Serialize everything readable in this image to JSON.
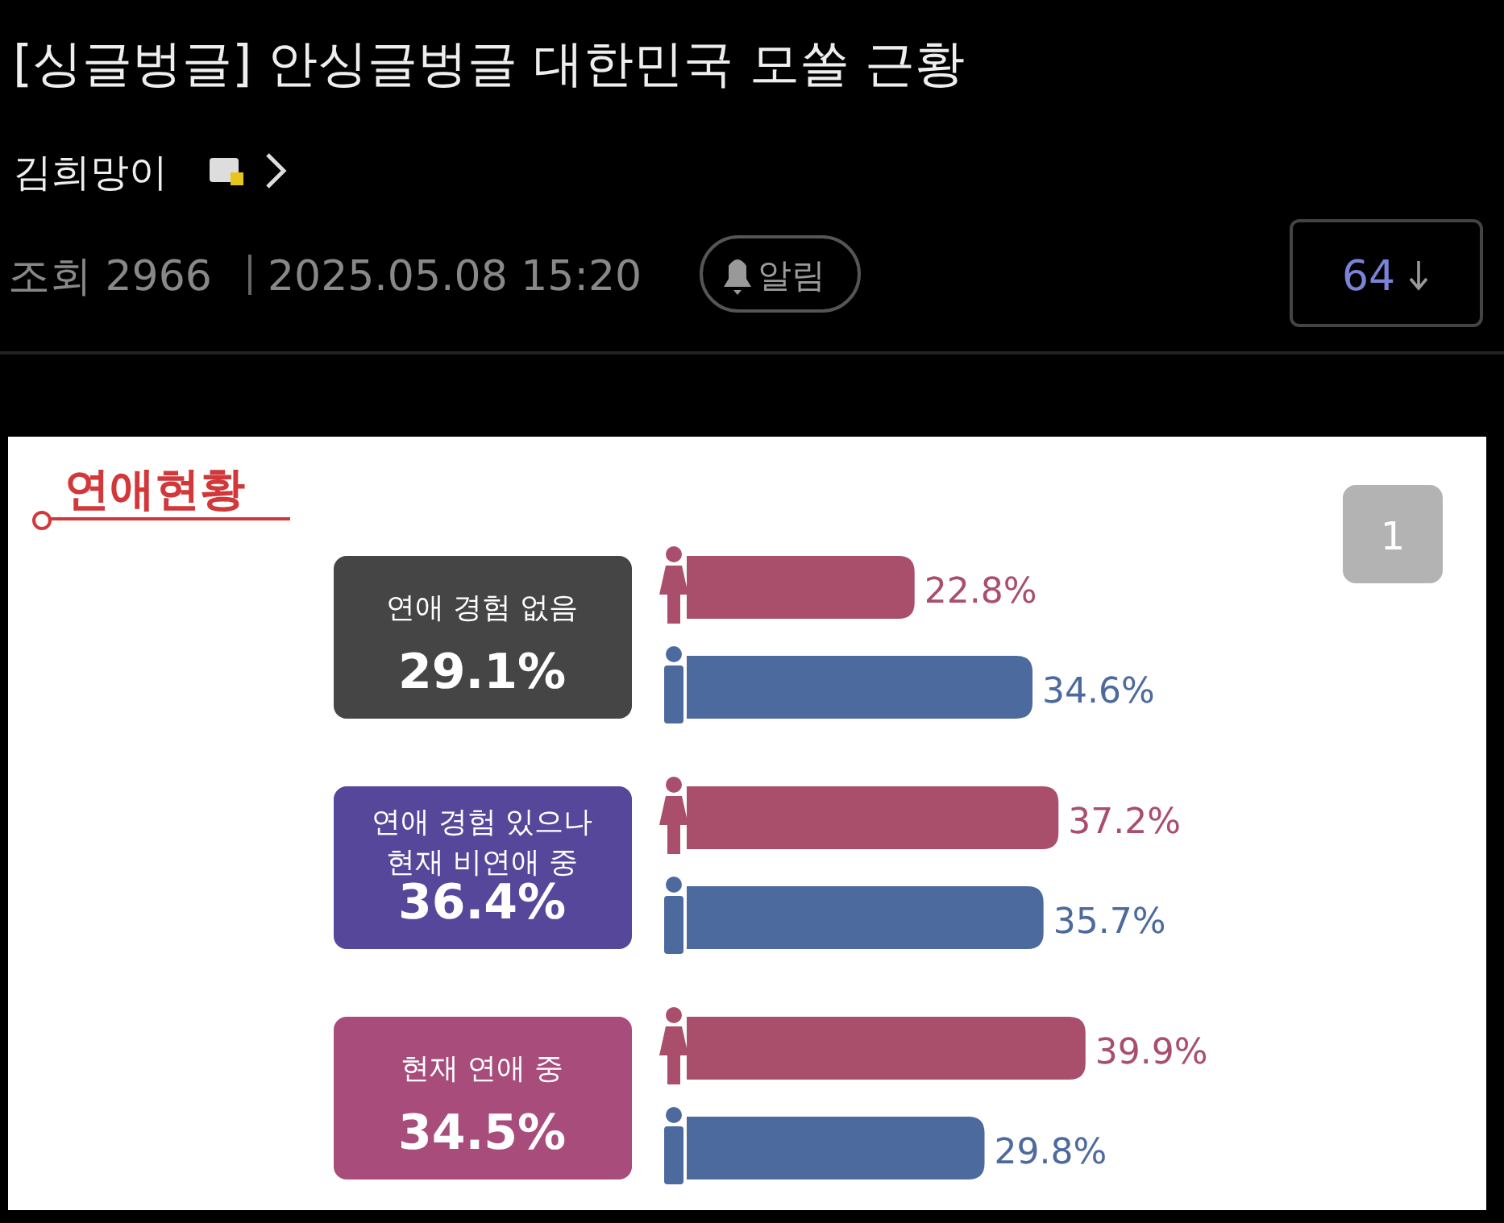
{
  "chart_data": {
    "type": "bar",
    "orientation": "horizontal",
    "title": "연애현황",
    "categories": [
      "연애 경험 없음",
      "연애 경험 있으나\n현재 비연애 중",
      "현재 연애 중"
    ],
    "series": [
      {
        "color": "#a94e6b",
        "values": [
          22.8,
          37.2,
          39.9
        ],
        "value_labels": [
          "22.8%",
          "37.2%",
          "39.9%"
        ]
      },
      {
        "color": "#4d6a9e",
        "values": [
          34.6,
          35.7,
          29.8
        ],
        "value_labels": [
          "34.6%",
          "35.7%",
          "29.8%"
        ]
      }
    ],
    "annotations": [
      "29.1%",
      "36.4%",
      "34.5%",
      "[싱글벙글] 안싱글벙글 대한민국 모쏠 근황",
      "김희망이",
      "조회 2966",
      "2025.05.08 15:20",
      "알림",
      "64",
      "1"
    ]
  }
}
